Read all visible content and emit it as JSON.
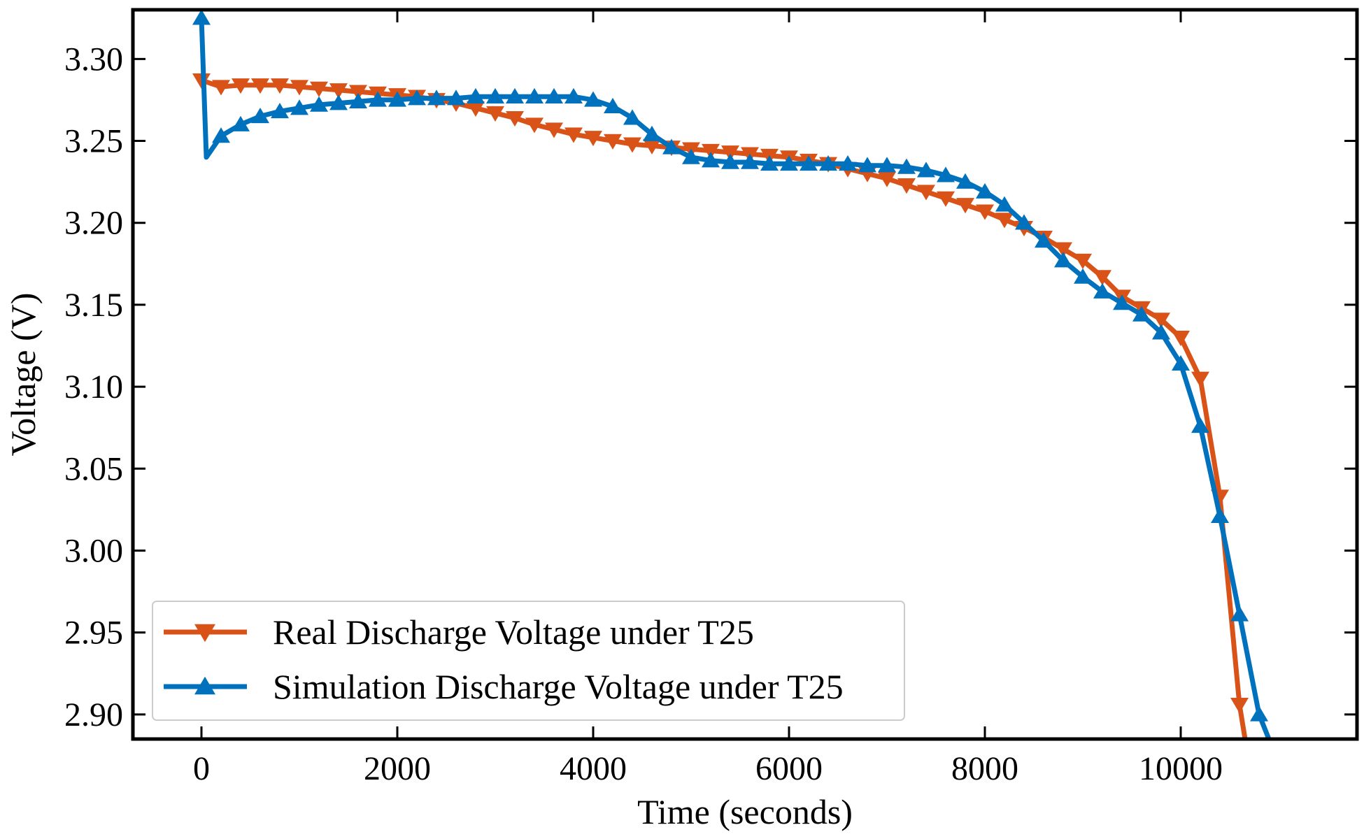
{
  "chart_data": {
    "type": "line",
    "title": "",
    "xlabel": "Time (seconds)",
    "ylabel": "Voltage (V)",
    "xlim": [
      -700,
      11800
    ],
    "ylim": [
      2.885,
      3.33
    ],
    "xticks": [
      0,
      2000,
      4000,
      6000,
      8000,
      10000
    ],
    "yticks": [
      2.9,
      2.95,
      3.0,
      3.05,
      3.1,
      3.15,
      3.2,
      3.25,
      3.3
    ],
    "xtick_labels": [
      "0",
      "2000",
      "4000",
      "6000",
      "8000",
      "10000"
    ],
    "ytick_labels": [
      "2.90",
      "2.95",
      "3.00",
      "3.05",
      "3.10",
      "3.15",
      "3.20",
      "3.25",
      "3.30"
    ],
    "grid": false,
    "legend_position": "bottom-left",
    "series": [
      {
        "name": "Real Discharge Voltage under T25",
        "color": "#d95319",
        "marker": "triangle-down",
        "x": [
          0,
          200,
          400,
          600,
          800,
          1000,
          1200,
          1400,
          1600,
          1800,
          2000,
          2200,
          2400,
          2600,
          2800,
          3000,
          3200,
          3400,
          3600,
          3800,
          4000,
          4200,
          4400,
          4600,
          4800,
          5000,
          5200,
          5400,
          5600,
          5800,
          6000,
          6200,
          6400,
          6600,
          6800,
          7000,
          7200,
          7400,
          7600,
          7800,
          8000,
          8200,
          8400,
          8600,
          8800,
          9000,
          9200,
          9400,
          9600,
          9800,
          10000,
          10200,
          10400,
          10600,
          10780
        ],
        "y": [
          3.287,
          3.283,
          3.284,
          3.284,
          3.284,
          3.283,
          3.282,
          3.281,
          3.28,
          3.279,
          3.278,
          3.277,
          3.275,
          3.273,
          3.27,
          3.267,
          3.264,
          3.26,
          3.257,
          3.254,
          3.252,
          3.25,
          3.248,
          3.247,
          3.246,
          3.245,
          3.244,
          3.243,
          3.242,
          3.241,
          3.24,
          3.238,
          3.236,
          3.233,
          3.23,
          3.227,
          3.223,
          3.219,
          3.215,
          3.211,
          3.207,
          3.202,
          3.197,
          3.191,
          3.184,
          3.177,
          3.167,
          3.155,
          3.148,
          3.141,
          3.13,
          3.105,
          3.033,
          2.906,
          2.84
        ]
      },
      {
        "name": "Simulation Discharge Voltage under T25",
        "color": "#0072bd",
        "marker": "triangle-up",
        "x": [
          0,
          50,
          200,
          400,
          600,
          800,
          1000,
          1200,
          1400,
          1600,
          1800,
          2000,
          2200,
          2400,
          2600,
          2800,
          3000,
          3200,
          3400,
          3600,
          3800,
          4000,
          4200,
          4400,
          4600,
          4800,
          5000,
          5200,
          5400,
          5600,
          5800,
          6000,
          6200,
          6400,
          6600,
          6800,
          7000,
          7200,
          7400,
          7600,
          7800,
          8000,
          8200,
          8400,
          8600,
          8800,
          9000,
          9200,
          9400,
          9600,
          9800,
          10000,
          10200,
          10400,
          10600,
          10800,
          11000
        ],
        "y": [
          3.325,
          3.24,
          3.253,
          3.26,
          3.265,
          3.268,
          3.27,
          3.272,
          3.273,
          3.274,
          3.275,
          3.275,
          3.276,
          3.276,
          3.276,
          3.277,
          3.277,
          3.277,
          3.277,
          3.277,
          3.277,
          3.275,
          3.271,
          3.264,
          3.254,
          3.246,
          3.24,
          3.238,
          3.237,
          3.237,
          3.236,
          3.236,
          3.236,
          3.236,
          3.236,
          3.235,
          3.235,
          3.234,
          3.232,
          3.229,
          3.225,
          3.219,
          3.211,
          3.2,
          3.189,
          3.177,
          3.167,
          3.158,
          3.151,
          3.144,
          3.133,
          3.114,
          3.076,
          3.021,
          2.961,
          2.9,
          2.87
        ]
      }
    ]
  }
}
